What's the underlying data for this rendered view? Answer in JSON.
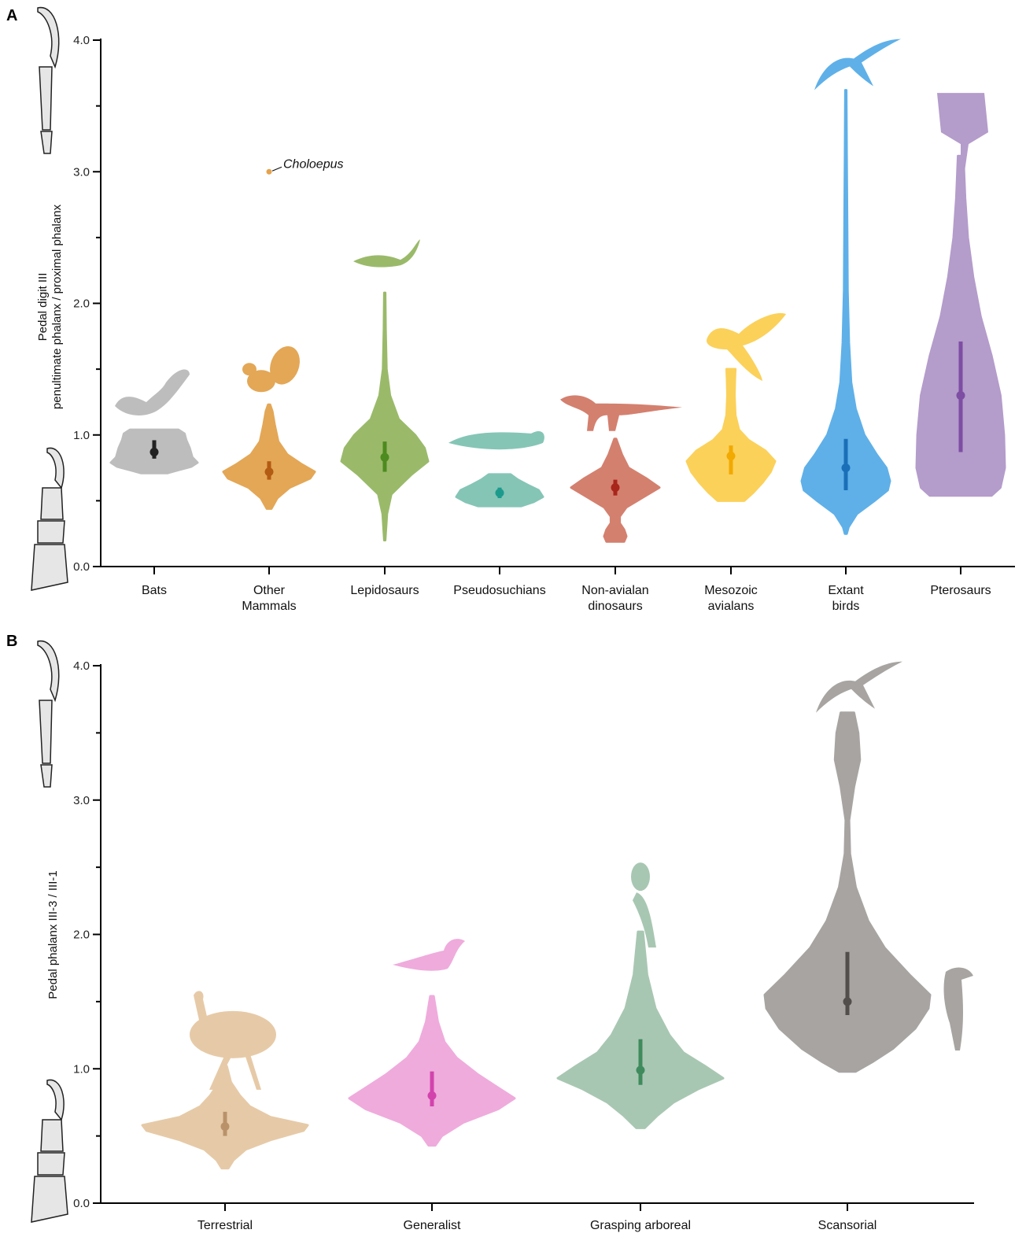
{
  "chart_data": [
    {
      "type": "violin",
      "panel": "A",
      "ylabel_lines": [
        "Pedal digit III",
        "penultimate phalanx / proximal phalanx"
      ],
      "ylim": [
        0,
        4.0
      ],
      "yticks": [
        0.0,
        1.0,
        2.0,
        3.0,
        4.0
      ],
      "ytick_labels": [
        "0.0",
        "1.0",
        "2.0",
        "3.0",
        "4.0"
      ],
      "annotation": {
        "text": "Choloepus",
        "value": 3.0,
        "category_index": 1,
        "color": "#e5a24e"
      },
      "groups": [
        {
          "name": "Bats",
          "label_lines": [
            "Bats"
          ],
          "color": "#bdbdbd",
          "center_color": "#222222",
          "silhouette": "bat-icon",
          "min": 0.71,
          "max": 1.04,
          "median": 0.87,
          "q1": 0.82,
          "q3": 0.96,
          "profile": [
            [
              0.71,
              0.3
            ],
            [
              0.73,
              0.52
            ],
            [
              0.76,
              0.86
            ],
            [
              0.79,
              1.0
            ],
            [
              0.83,
              0.88
            ],
            [
              0.9,
              0.82
            ],
            [
              0.96,
              0.74
            ],
            [
              1.01,
              0.7
            ],
            [
              1.04,
              0.56
            ]
          ]
        },
        {
          "name": "Other Mammals",
          "label_lines": [
            "Other",
            "Mammals"
          ],
          "color": "#e3a756",
          "center_color": "#b35a13",
          "silhouette": "squirrel-icon",
          "min": 0.44,
          "max": 1.23,
          "median": 0.72,
          "q1": 0.66,
          "q3": 0.8,
          "profile": [
            [
              0.44,
              0.05
            ],
            [
              0.52,
              0.18
            ],
            [
              0.6,
              0.45
            ],
            [
              0.67,
              0.9
            ],
            [
              0.72,
              1.0
            ],
            [
              0.78,
              0.7
            ],
            [
              0.85,
              0.4
            ],
            [
              0.95,
              0.2
            ],
            [
              1.08,
              0.12
            ],
            [
              1.18,
              0.07
            ],
            [
              1.23,
              0.02
            ]
          ]
        },
        {
          "name": "Lepidosaurs",
          "label_lines": [
            "Lepidosaurs"
          ],
          "color": "#9aba6a",
          "center_color": "#4d8a1f",
          "silhouette": "lizard-icon",
          "min": 0.2,
          "max": 2.08,
          "median": 0.83,
          "q1": 0.72,
          "q3": 0.95,
          "profile": [
            [
              0.2,
              0.01
            ],
            [
              0.4,
              0.05
            ],
            [
              0.55,
              0.15
            ],
            [
              0.7,
              0.62
            ],
            [
              0.8,
              1.0
            ],
            [
              0.9,
              0.92
            ],
            [
              1.0,
              0.7
            ],
            [
              1.12,
              0.32
            ],
            [
              1.3,
              0.12
            ],
            [
              1.5,
              0.04
            ],
            [
              1.8,
              0.02
            ],
            [
              2.08,
              0.01
            ]
          ]
        },
        {
          "name": "Pseudosuchians",
          "label_lines": [
            "Pseudosuchians"
          ],
          "color": "#85c5b6",
          "center_color": "#1c9b8d",
          "silhouette": "crocodile-icon",
          "min": 0.46,
          "max": 0.7,
          "median": 0.56,
          "q1": 0.52,
          "q3": 0.6,
          "profile": [
            [
              0.46,
              0.5
            ],
            [
              0.49,
              0.78
            ],
            [
              0.53,
              1.0
            ],
            [
              0.58,
              0.9
            ],
            [
              0.62,
              0.65
            ],
            [
              0.66,
              0.42
            ],
            [
              0.7,
              0.25
            ]
          ]
        },
        {
          "name": "Non-avialan dinosaurs",
          "label_lines": [
            "Non-avialan",
            "dinosaurs"
          ],
          "color": "#d4806f",
          "center_color": "#a8261b",
          "silhouette": "dinosaur-icon",
          "min": 0.19,
          "max": 0.97,
          "median": 0.6,
          "q1": 0.54,
          "q3": 0.66,
          "profile": [
            [
              0.19,
              0.2
            ],
            [
              0.23,
              0.25
            ],
            [
              0.28,
              0.2
            ],
            [
              0.33,
              0.1
            ],
            [
              0.38,
              0.1
            ],
            [
              0.45,
              0.25
            ],
            [
              0.52,
              0.6
            ],
            [
              0.6,
              1.0
            ],
            [
              0.67,
              0.7
            ],
            [
              0.75,
              0.3
            ],
            [
              0.85,
              0.15
            ],
            [
              0.97,
              0.02
            ]
          ]
        },
        {
          "name": "Mesozoic avialans",
          "label_lines": [
            "Mesozoic",
            "avialans"
          ],
          "color": "#fbd15a",
          "center_color": "#f2a900",
          "silhouette": "early-bird-icon",
          "min": 0.5,
          "max": 1.5,
          "median": 0.84,
          "q1": 0.7,
          "q3": 0.92,
          "profile": [
            [
              0.5,
              0.3
            ],
            [
              0.56,
              0.5
            ],
            [
              0.64,
              0.72
            ],
            [
              0.72,
              0.9
            ],
            [
              0.8,
              1.0
            ],
            [
              0.88,
              0.78
            ],
            [
              0.96,
              0.4
            ],
            [
              1.04,
              0.18
            ],
            [
              1.15,
              0.1
            ],
            [
              1.3,
              0.08
            ],
            [
              1.42,
              0.09
            ],
            [
              1.5,
              0.1
            ]
          ]
        },
        {
          "name": "Extant birds",
          "label_lines": [
            "Extant",
            "birds"
          ],
          "color": "#5fb0e8",
          "center_color": "#1a6fb8",
          "silhouette": "swift-icon",
          "min": 0.25,
          "max": 3.62,
          "median": 0.75,
          "q1": 0.58,
          "q3": 0.97,
          "profile": [
            [
              0.25,
              0.02
            ],
            [
              0.3,
              0.06
            ],
            [
              0.4,
              0.25
            ],
            [
              0.5,
              0.65
            ],
            [
              0.58,
              0.95
            ],
            [
              0.65,
              1.0
            ],
            [
              0.75,
              0.92
            ],
            [
              0.85,
              0.7
            ],
            [
              1.0,
              0.42
            ],
            [
              1.2,
              0.22
            ],
            [
              1.4,
              0.12
            ],
            [
              1.7,
              0.07
            ],
            [
              2.1,
              0.04
            ],
            [
              2.6,
              0.03
            ],
            [
              3.1,
              0.02
            ],
            [
              3.62,
              0.01
            ]
          ]
        },
        {
          "name": "Pterosaurs",
          "label_lines": [
            "Pterosaurs"
          ],
          "color": "#b49ccb",
          "center_color": "#7d4ea3",
          "silhouette": "pterosaur-icon",
          "min": 0.54,
          "max": 3.12,
          "median": 1.3,
          "q1": 0.87,
          "q3": 1.71,
          "profile": [
            [
              0.54,
              0.7
            ],
            [
              0.6,
              0.9
            ],
            [
              0.75,
              1.0
            ],
            [
              1.0,
              0.98
            ],
            [
              1.3,
              0.9
            ],
            [
              1.6,
              0.7
            ],
            [
              1.9,
              0.45
            ],
            [
              2.2,
              0.28
            ],
            [
              2.5,
              0.16
            ],
            [
              2.8,
              0.1
            ],
            [
              3.12,
              0.06
            ]
          ]
        }
      ]
    },
    {
      "type": "violin",
      "panel": "B",
      "ylabel_lines": [
        "Pedal phalanx III-3 / III-1"
      ],
      "ylim": [
        0,
        4.0
      ],
      "yticks": [
        0.0,
        1.0,
        2.0,
        3.0,
        4.0
      ],
      "ytick_labels": [
        "0.0",
        "1.0",
        "2.0",
        "3.0",
        "4.0"
      ],
      "groups": [
        {
          "name": "Terrestrial",
          "label_lines": [
            "Terrestrial"
          ],
          "color": "#e6caa7",
          "center_color": "#b9926a",
          "silhouette": "emu-icon",
          "min": 0.26,
          "max": 1.02,
          "median": 0.57,
          "q1": 0.5,
          "q3": 0.68,
          "profile": [
            [
              0.26,
              0.04
            ],
            [
              0.32,
              0.1
            ],
            [
              0.4,
              0.25
            ],
            [
              0.47,
              0.55
            ],
            [
              0.54,
              0.95
            ],
            [
              0.58,
              1.0
            ],
            [
              0.64,
              0.55
            ],
            [
              0.72,
              0.3
            ],
            [
              0.8,
              0.18
            ],
            [
              0.9,
              0.07
            ],
            [
              1.02,
              0.02
            ]
          ]
        },
        {
          "name": "Generalist",
          "label_lines": [
            "Generalist"
          ],
          "color": "#efabdc",
          "center_color": "#d243ad",
          "silhouette": "songbird-icon",
          "min": 0.43,
          "max": 1.54,
          "median": 0.8,
          "q1": 0.72,
          "q3": 0.98,
          "profile": [
            [
              0.43,
              0.04
            ],
            [
              0.5,
              0.12
            ],
            [
              0.6,
              0.38
            ],
            [
              0.7,
              0.8
            ],
            [
              0.78,
              1.0
            ],
            [
              0.86,
              0.8
            ],
            [
              0.96,
              0.55
            ],
            [
              1.08,
              0.3
            ],
            [
              1.2,
              0.15
            ],
            [
              1.35,
              0.07
            ],
            [
              1.54,
              0.02
            ]
          ]
        },
        {
          "name": "Grasping arboreal",
          "label_lines": [
            "Grasping arboreal"
          ],
          "color": "#a8c7b2",
          "center_color": "#3f8b5e",
          "silhouette": "parrot-icon",
          "min": 0.56,
          "max": 2.02,
          "median": 0.99,
          "q1": 0.88,
          "q3": 1.22,
          "profile": [
            [
              0.56,
              0.05
            ],
            [
              0.65,
              0.2
            ],
            [
              0.75,
              0.4
            ],
            [
              0.85,
              0.7
            ],
            [
              0.93,
              1.0
            ],
            [
              1.02,
              0.78
            ],
            [
              1.12,
              0.52
            ],
            [
              1.25,
              0.35
            ],
            [
              1.45,
              0.18
            ],
            [
              1.7,
              0.08
            ],
            [
              2.02,
              0.03
            ]
          ]
        },
        {
          "name": "Scansorial",
          "label_lines": [
            "Scansorial"
          ],
          "color": "#a7a4a1",
          "center_color": "#524e4b",
          "silhouette": "swift-icon",
          "min": 0.98,
          "max": 3.65,
          "median": 1.5,
          "q1": 1.4,
          "q3": 1.87,
          "profile": [
            [
              0.98,
              0.1
            ],
            [
              1.05,
              0.3
            ],
            [
              1.15,
              0.55
            ],
            [
              1.3,
              0.82
            ],
            [
              1.45,
              0.98
            ],
            [
              1.55,
              1.0
            ],
            [
              1.7,
              0.75
            ],
            [
              1.9,
              0.45
            ],
            [
              2.1,
              0.25
            ],
            [
              2.35,
              0.1
            ],
            [
              2.6,
              0.03
            ],
            [
              2.85,
              0.02
            ],
            [
              3.1,
              0.08
            ],
            [
              3.3,
              0.15
            ],
            [
              3.5,
              0.13
            ],
            [
              3.65,
              0.08
            ]
          ]
        }
      ]
    }
  ]
}
